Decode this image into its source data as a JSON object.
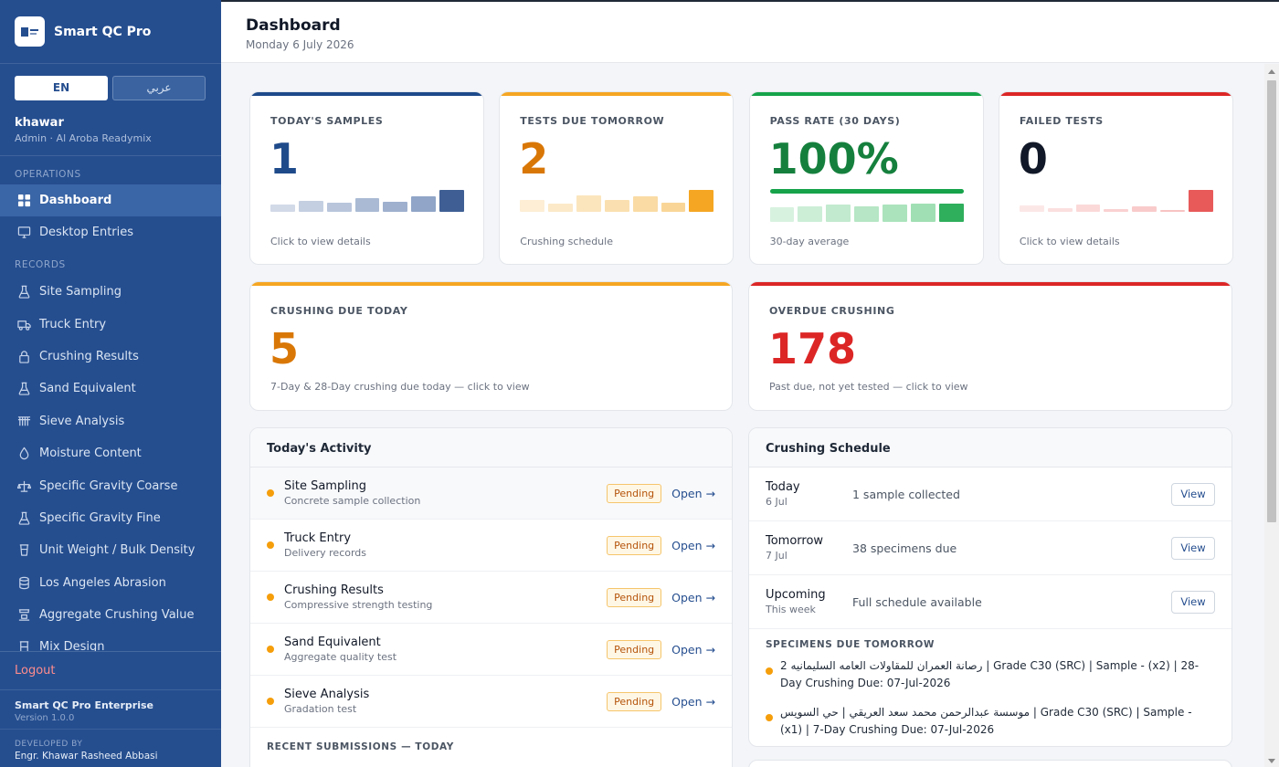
{
  "app": {
    "name": "Smart QC Pro"
  },
  "lang": {
    "en": "EN",
    "ar": "عربي"
  },
  "user": {
    "name": "khawar",
    "role": "Admin · Al Aroba Readymix"
  },
  "nav": {
    "ops_label": "OPERATIONS",
    "records_label": "RECORDS",
    "ops_items": [
      {
        "label": "Dashboard",
        "icon": "grid-icon"
      },
      {
        "label": "Desktop Entries",
        "icon": "monitor-icon"
      }
    ],
    "record_items": [
      {
        "label": "Site Sampling",
        "icon": "flask-icon"
      },
      {
        "label": "Truck Entry",
        "icon": "truck-icon"
      },
      {
        "label": "Crushing Results",
        "icon": "lock-icon"
      },
      {
        "label": "Sand Equivalent",
        "icon": "flask-icon"
      },
      {
        "label": "Sieve Analysis",
        "icon": "sieve-icon"
      },
      {
        "label": "Moisture Content",
        "icon": "droplet-icon"
      },
      {
        "label": "Specific Gravity Coarse",
        "icon": "scale-icon"
      },
      {
        "label": "Specific Gravity Fine",
        "icon": "flask-icon"
      },
      {
        "label": "Unit Weight / Bulk Density",
        "icon": "container-icon"
      },
      {
        "label": "Los Angeles Abrasion",
        "icon": "cylinder-icon"
      },
      {
        "label": "Aggregate Crushing Value",
        "icon": "press-icon"
      },
      {
        "label": "Mix Design",
        "icon": "beaker-icon"
      }
    ],
    "logout": "Logout"
  },
  "footer": {
    "app": "Smart QC Pro Enterprise",
    "version": "Version 1.0.0",
    "dev_label": "DEVELOPED BY",
    "dev": "Engr. Khawar Rasheed Abbasi"
  },
  "header": {
    "title": "Dashboard",
    "date": "Monday 6 July 2026"
  },
  "stats": [
    {
      "label": "TODAY'S SAMPLES",
      "value": "1",
      "foot": "Click to view details",
      "color": "#1e4a8a",
      "bars": [
        0.28,
        0.42,
        0.35,
        0.55,
        0.4,
        0.62,
        0.85
      ],
      "barcolor": "#7d95bd",
      "lastcolor": "#3f5f94"
    },
    {
      "label": "TESTS DUE TOMORROW",
      "value": "2",
      "foot": "Crushing schedule",
      "color": "#d97706",
      "bars": [
        0.45,
        0.32,
        0.65,
        0.45,
        0.6,
        0.35,
        0.85
      ],
      "barcolor": "#f8cf86",
      "lastcolor": "#f5a623"
    },
    {
      "label": "PASS RATE (30 DAYS)",
      "value": "100%",
      "foot": "30-day average",
      "color": "#15803d",
      "bars": [
        0.65,
        0.72,
        0.8,
        0.72,
        0.8,
        0.85,
        0.85
      ],
      "barcolor": "#8fd9a6",
      "lastcolor": "#2fae5c"
    },
    {
      "label": "FAILED TESTS",
      "value": "0",
      "foot": "Click to view details",
      "color": "#111827",
      "bars": [
        0.25,
        0.15,
        0.28,
        0.1,
        0.2,
        0.07,
        0.85
      ],
      "barcolor": "#f7b9b9",
      "lastcolor": "#e85a5a"
    }
  ],
  "big_cards": [
    {
      "label": "CRUSHING DUE TODAY",
      "value": "5",
      "foot": "7-Day & 28-Day crushing due today — click to view",
      "color": "#d97706"
    },
    {
      "label": "OVERDUE CRUSHING",
      "value": "178",
      "foot": "Past due, not yet tested — click to view",
      "color": "#dc2626"
    }
  ],
  "activity": {
    "title": "Today's Activity",
    "rows": [
      {
        "title": "Site Sampling",
        "sub": "Concrete sample collection",
        "badge": "Pending",
        "link": "Open →"
      },
      {
        "title": "Truck Entry",
        "sub": "Delivery records",
        "badge": "Pending",
        "link": "Open →"
      },
      {
        "title": "Crushing Results",
        "sub": "Compressive strength testing",
        "badge": "Pending",
        "link": "Open →"
      },
      {
        "title": "Sand Equivalent",
        "sub": "Aggregate quality test",
        "badge": "Pending",
        "link": "Open →"
      },
      {
        "title": "Sieve Analysis",
        "sub": "Gradation test",
        "badge": "Pending",
        "link": "Open →"
      }
    ],
    "recent_label": "RECENT SUBMISSIONS — TODAY"
  },
  "schedule": {
    "title": "Crushing Schedule",
    "rows": [
      {
        "day": "Today",
        "date": "6 Jul",
        "desc": "1 sample collected",
        "btn": "View"
      },
      {
        "day": "Tomorrow",
        "date": "7 Jul",
        "desc": "38 specimens due",
        "btn": "View"
      },
      {
        "day": "Upcoming",
        "date": "This week",
        "desc": "Full schedule available",
        "btn": "View"
      }
    ],
    "spec_label": "SPECIMENS DUE TOMORROW",
    "specimens": [
      "رصانة العمران للمقاولات العامه السليمانيه 2 | Grade C30 (SRC) | Sample - (x2) | 28-Day Crushing Due: 07-Jul-2026",
      "موسسة عبدالرحمن محمد سعد العريقي | حي السويس | Grade C30 (SRC) | Sample - (x1) | 7-Day Crushing Due: 07-Jul-2026"
    ]
  }
}
